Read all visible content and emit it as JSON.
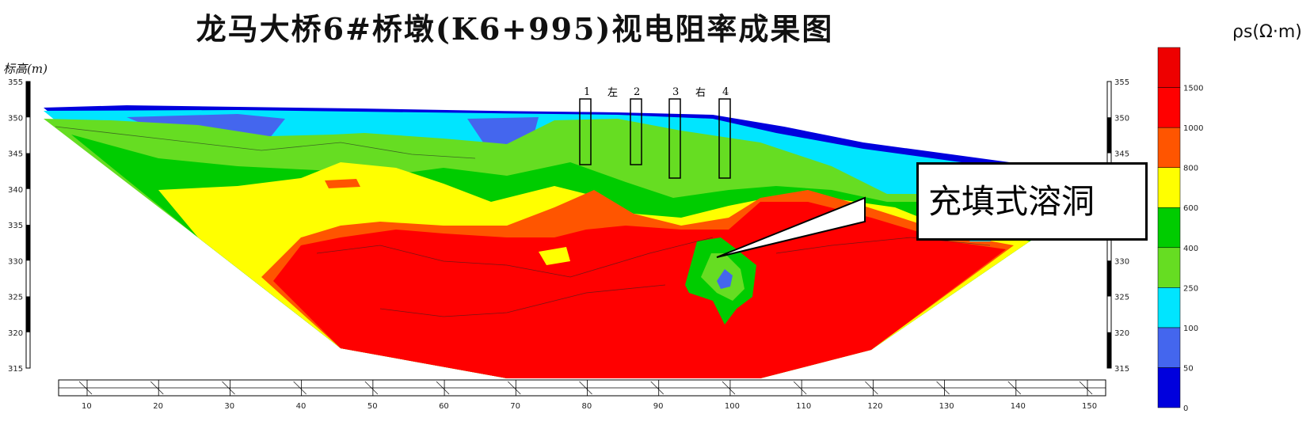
{
  "title": "龙马大桥6#桥墩(K6+995)视电阻率成果图",
  "ylabel": "标高(m)",
  "colorbar_unit": "ρs(Ω·m)",
  "annotation": "充填式溶洞",
  "pier_labels": [
    "1",
    "左",
    "2",
    "3",
    "右",
    "4"
  ],
  "colors": {
    "c0": "#0000dd",
    "c1": "#4466ee",
    "c2": "#00e5ff",
    "c3": "#66dd22",
    "c4": "#00cc00",
    "c5": "#ffff00",
    "c6": "#ff5500",
    "c7": "#ff0000",
    "c8": "#ee0000"
  },
  "chart_data": {
    "type": "heatmap",
    "title": "龙马大桥6#桥墩(K6+995)视电阻率成果图",
    "xlabel": "",
    "ylabel": "标高(m)",
    "x_ticks": [
      10,
      20,
      30,
      40,
      50,
      60,
      70,
      80,
      90,
      100,
      110,
      120,
      130,
      140,
      150
    ],
    "xlim": [
      4,
      152
    ],
    "y_ticks": [
      355,
      350,
      345,
      340,
      335,
      330,
      325,
      320,
      315
    ],
    "ylim": [
      315,
      357
    ],
    "colorbar": {
      "label": "ρs(Ω·m)",
      "ticks": [
        "0",
        "50",
        "100",
        "250",
        "400",
        "600",
        "800",
        "1000",
        "1500"
      ],
      "bands": [
        {
          "min": 0,
          "max": 50,
          "color": "#0000dd"
        },
        {
          "min": 50,
          "max": 100,
          "color": "#4466ee"
        },
        {
          "min": 100,
          "max": 250,
          "color": "#00e5ff"
        },
        {
          "min": 250,
          "max": 400,
          "color": "#66dd22"
        },
        {
          "min": 400,
          "max": 600,
          "color": "#00cc00"
        },
        {
          "min": 600,
          "max": 800,
          "color": "#ffff00"
        },
        {
          "min": 800,
          "max": 1000,
          "color": "#ff5500"
        },
        {
          "min": 1000,
          "max": 1500,
          "color": "#ff0000"
        },
        {
          "min": 1500,
          "max": null,
          "color": "#ee0000"
        }
      ]
    },
    "piers": [
      {
        "label": "1",
        "x": 80
      },
      {
        "label": "2",
        "x": 87
      },
      {
        "label": "3",
        "x": 93
      },
      {
        "label": "4",
        "x": 99
      }
    ],
    "annotations": [
      {
        "text": "充填式溶洞",
        "x": 97,
        "y": 329
      }
    ]
  }
}
